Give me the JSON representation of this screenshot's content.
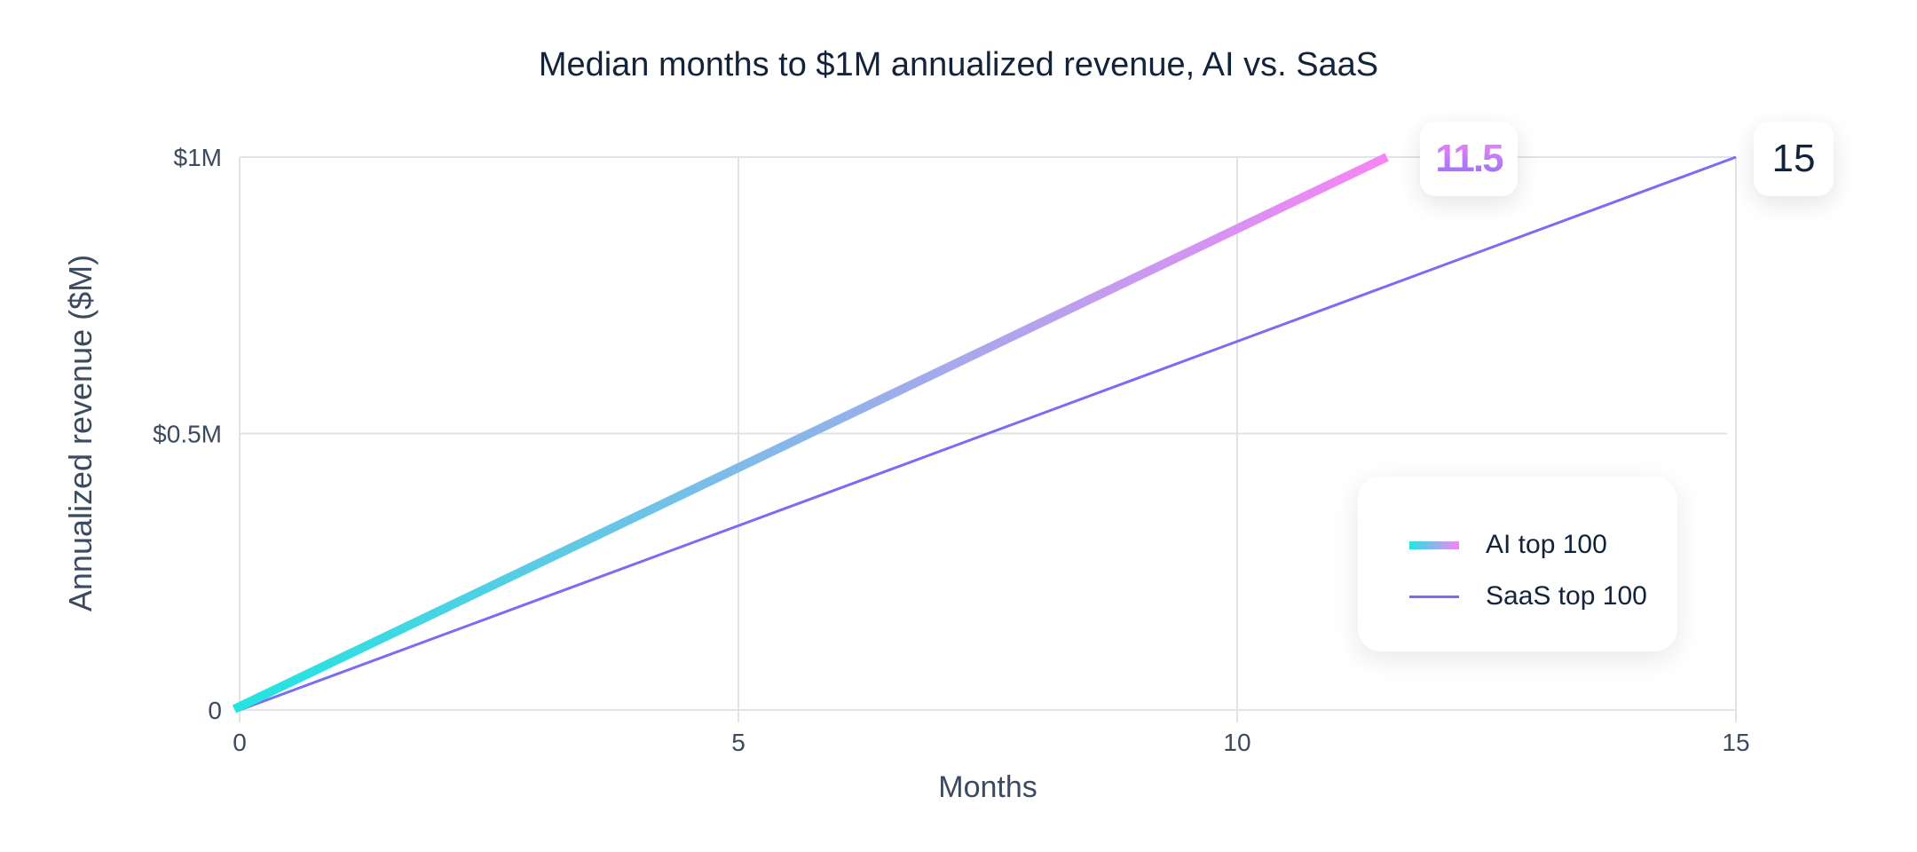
{
  "chart_data": {
    "type": "line",
    "title": "Median months to $1M annualized revenue, AI vs. SaaS",
    "xlabel": "Months",
    "ylabel": "Annualized revenue ($M)",
    "xlim": [
      0,
      15
    ],
    "ylim": [
      0,
      1
    ],
    "x_ticks": [
      0,
      5,
      10,
      15
    ],
    "x_tick_labels": [
      "0",
      "5",
      "10",
      "15"
    ],
    "y_ticks": [
      0,
      0.5,
      1
    ],
    "y_tick_labels": [
      "0",
      "$0.5M",
      "$1M"
    ],
    "grid": true,
    "legend_placement": "bottom-right",
    "series": [
      {
        "name": "AI top 100",
        "x": [
          0,
          11.5
        ],
        "y": [
          0,
          1
        ],
        "color_start": "#22e5e0",
        "color_end": "#f784f5",
        "end_label": "11.5"
      },
      {
        "name": "SaaS top 100",
        "x": [
          0,
          15
        ],
        "y": [
          0,
          1
        ],
        "color": "#7b6cf6",
        "end_label": "15"
      }
    ]
  }
}
